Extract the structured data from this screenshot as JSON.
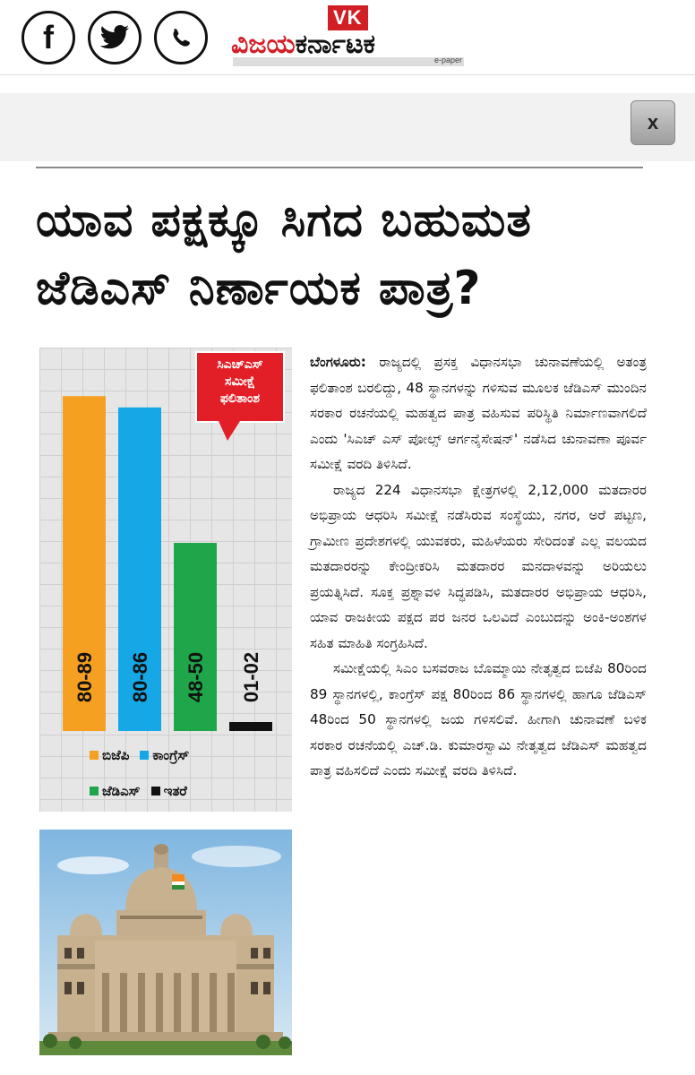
{
  "masthead": {
    "badge": "VK",
    "logo_part1": "ವಿಜಯ",
    "logo_part2": "ಕರ್ನಾಟಕ",
    "subtitle": "e-paper"
  },
  "share": {
    "facebook_icon": "facebook-icon",
    "twitter_icon": "twitter-icon",
    "whatsapp_icon": "whatsapp-icon",
    "close_label": "x"
  },
  "headline": {
    "line1": "ಯಾವ ಪಕ್ಷಕ್ಕೂ ಸಿಗದ ಬಹುಮತ",
    "line2": "ಜೆಡಿಎಸ್ ನಿರ್ಣಾಯಕ ಪಾತ್ರ?"
  },
  "callout": {
    "line1": "ಸಿಎಚ್‌ಎಸ್",
    "line2": "ಸಮೀಕ್ಷೆ",
    "line3": "ಫಲಿತಾಂಶ"
  },
  "chart_data": {
    "type": "bar",
    "categories": [
      "ಬಿಜೆಪಿ",
      "ಕಾಂಗ್ರೆಸ್",
      "ಜೆಡಿಎಸ್",
      "ಇತರೆ"
    ],
    "values": [
      89,
      86,
      50,
      2
    ],
    "labels": [
      "80-89",
      "80-86",
      "48-50",
      "01-02"
    ],
    "colors": [
      "#f5a020",
      "#16a7e6",
      "#1fa64b",
      "#111111"
    ],
    "legend": [
      {
        "label": "ಬಿಜೆಪಿ",
        "color": "#f5a020"
      },
      {
        "label": "ಕಾಂಗ್ರೆಸ್",
        "color": "#16a7e6"
      },
      {
        "label": "ಜೆಡಿಎಸ್",
        "color": "#1fa64b"
      },
      {
        "label": "ಇತರೆ",
        "color": "#111111"
      }
    ],
    "ylim": [
      0,
      100
    ],
    "grid": true
  },
  "article": {
    "dateline": "ಬೆಂಗಳೂರು:",
    "p1": "ರಾಜ್ಯದಲ್ಲಿ ಪ್ರಸಕ್ತ ವಿಧಾನಸಭಾ ಚುನಾವಣೆಯಲ್ಲಿ ಅತಂತ್ರ ಫಲಿತಾಂಶ ಬರಲಿದ್ದು, 48 ಸ್ಥಾನಗಳನ್ನು ಗಳಿಸುವ ಮೂಲಕ ಜೆಡಿಎಸ್ ಮುಂದಿನ ಸರಕಾರ ರಚನೆಯಲ್ಲಿ ಮಹತ್ವದ ಪಾತ್ರ ವಹಿಸುವ ಪರಿಸ್ಥಿತಿ ನಿರ್ಮಾಣವಾಗಲಿದೆ ಎಂದು 'ಸಿಎಚ್ ಎಸ್ ಪೋಲ್ಸ್ ಆರ್ಗನೈಸೇಷನ್' ನಡೆಸಿದ ಚುನಾವಣಾ ಪೂರ್ವ ಸಮೀಕ್ಷೆ ವರದಿ ತಿಳಿಸಿದೆ.",
    "p2": "ರಾಜ್ಯದ 224 ವಿಧಾನಸಭಾ ಕ್ಷೇತ್ರಗಳಲ್ಲಿ 2,12,000 ಮತದಾರರ ಅಭಿಪ್ರಾಯ ಆಧರಿಸಿ ಸಮೀಕ್ಷೆ ನಡೆಸಿರುವ ಸಂಸ್ಥೆಯು, ನಗರ, ಅರೆ ಪಟ್ಟಣ, ಗ್ರಾಮೀಣ ಪ್ರದೇಶಗಳಲ್ಲಿ ಯುವಕರು, ಮಹಿಳೆಯರು ಸೇರಿದಂತೆ ಎಲ್ಲ ವಲಯದ ಮತದಾರರನ್ನು ಕೇಂದ್ರೀಕರಿಸಿ ಮತದಾರರ ಮನದಾಳವನ್ನು ಅರಿಯಲು ಪ್ರಯತ್ನಿಸಿದೆ. ಸೂಕ್ತ ಪ್ರಶ್ನಾವಳಿ ಸಿದ್ಧಪಡಿಸಿ, ಮತದಾರರ ಅಭಿಪ್ರಾಯ ಆಧರಿಸಿ, ಯಾವ ರಾಜಕೀಯ ಪಕ್ಷದ ಪರ ಜನರ ಒಲವಿದೆ ಎಂಬುದನ್ನು ಅಂಕಿ-ಅಂಶಗಳ ಸಹಿತ ಮಾಹಿತಿ ಸಂಗ್ರಹಿಸಿದೆ.",
    "p3": "ಸಮೀಕ್ಷೆಯಲ್ಲಿ ಸಿಎಂ ಬಸವರಾಜ ಬೊಮ್ಮಾಯಿ ನೇತೃತ್ವದ ಬಿಜೆಪಿ 80ರಿಂದ 89 ಸ್ಥಾನಗಳಲ್ಲಿ, ಕಾಂಗ್ರೆಸ್ ಪಕ್ಷ 80ರಿಂದ 86 ಸ್ಥಾನಗಳಲ್ಲಿ ಹಾಗೂ ಜೆಡಿಎಸ್ 48ರಿಂದ 50 ಸ್ಥಾನಗಳಲ್ಲಿ ಜಯ ಗಳಿಸಲಿವೆ. ಹೀಗಾಗಿ ಚುನಾವಣೆ ಬಳಿಕ ಸರಕಾರ ರಚನೆಯಲ್ಲಿ ಎಚ್.ಡಿ. ಕುಮಾರಸ್ವಾಮಿ ನೇತೃತ್ವದ ಜೆಡಿಎಸ್ ಮಹತ್ವದ ಪಾತ್ರ ವಹಿಸಲಿದೆ ಎಂದು ಸಮೀಕ್ಷೆ ವರದಿ ತಿಳಿಸಿದೆ."
  }
}
